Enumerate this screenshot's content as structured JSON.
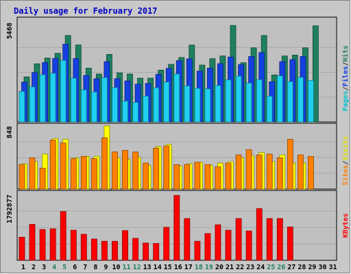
{
  "chart_data": {
    "type": "bar",
    "title": "Daily usage for February 2017",
    "categories": [
      "1",
      "2",
      "3",
      "4",
      "5",
      "6",
      "7",
      "8",
      "9",
      "10",
      "11",
      "12",
      "13",
      "14",
      "15",
      "16",
      "17",
      "18",
      "19",
      "20",
      "21",
      "22",
      "23",
      "24",
      "25",
      "26",
      "27",
      "28",
      "29",
      "30",
      "31"
    ],
    "weekend_days": [
      4,
      5,
      11,
      12,
      18,
      19,
      25,
      26
    ],
    "panels": [
      {
        "key": "pages_files_hits",
        "max_label": "5468",
        "ymax": 5468,
        "axis_labels": [
          {
            "text": "Pages",
            "color": "#00c0d0"
          },
          {
            "text": "/",
            "color": "#333333"
          },
          {
            "text": "Files",
            "color": "#1040e0"
          },
          {
            "text": "/",
            "color": "#333333"
          },
          {
            "text": "Hits",
            "color": "#208060"
          }
        ],
        "series": [
          {
            "name": "Hits",
            "color": "#1e8060",
            "values": [
              2480,
              3200,
              3520,
              3780,
              4760,
              4240,
              2960,
              2640,
              3720,
              2700,
              2640,
              2410,
              2410,
              2850,
              3170,
              3550,
              4230,
              3130,
              3480,
              3630,
              5310,
              3260,
              4080,
              4760,
              2590,
              3630,
              3680,
              4080,
              5290,
              0,
              0
            ]
          },
          {
            "name": "Files",
            "color": "#1540e0",
            "values": [
              2190,
              2720,
              3270,
              3500,
              4280,
              3490,
              2560,
              2380,
              3320,
              2380,
              2260,
              2080,
              2120,
              2620,
              2950,
              3380,
              3470,
              2800,
              2960,
              3210,
              3570,
              3160,
              3600,
              3820,
              2210,
              3320,
              3430,
              3600,
              0,
              0,
              0
            ]
          },
          {
            "name": "Pages",
            "color": "#20d0f0",
            "values": [
              1680,
              1930,
              2600,
              2680,
              3390,
              2410,
              1770,
              1650,
              2440,
              1890,
              1150,
              1080,
              1420,
              1880,
              2200,
              2640,
              1980,
              1850,
              1820,
              2010,
              2320,
              2520,
              2140,
              2330,
              1420,
              2540,
              2220,
              2460,
              2280,
              0,
              0
            ]
          }
        ]
      },
      {
        "key": "visits_sites",
        "max_label": "848",
        "ymax": 848,
        "axis_labels": [
          {
            "text": "Sites",
            "color": "#ff8000"
          },
          {
            "text": "/",
            "color": "#333333"
          },
          {
            "text": "Visits",
            "color": "#e0e000"
          }
        ],
        "series": [
          {
            "name": "Visits",
            "color": "#ffff00",
            "values": [
              340,
              370,
              470,
              680,
              670,
              420,
              440,
              440,
              850,
              420,
              400,
              430,
              320,
              570,
              600,
              310,
              340,
              360,
              320,
              350,
              370,
              420,
              450,
              490,
              370,
              460,
              350,
              350,
              0,
              0,
              0
            ]
          },
          {
            "name": "Sites",
            "color": "#ff8000",
            "values": [
              330,
              420,
              280,
              660,
              620,
              410,
              440,
              410,
              690,
              500,
              520,
              500,
              350,
              550,
              580,
              330,
              330,
              360,
              330,
              300,
              350,
              460,
              530,
              460,
              470,
              420,
              670,
              460,
              440,
              0,
              0
            ]
          }
        ]
      },
      {
        "key": "kbytes",
        "max_label": "1792877",
        "ymax": 1792877,
        "axis_labels": [
          {
            "text": "KBytes",
            "color": "#ff0000"
          }
        ],
        "series": [
          {
            "name": "KBytes",
            "color": "#ff0000",
            "values": [
              630000,
              980000,
              840000,
              860000,
              1330000,
              820000,
              710000,
              580000,
              520000,
              520000,
              810000,
              600000,
              470000,
              460000,
              900000,
              1770000,
              1140000,
              520000,
              730000,
              970000,
              820000,
              1140000,
              800000,
              1410000,
              1140000,
              1140000,
              910000,
              0,
              0,
              0,
              0
            ]
          }
        ]
      }
    ]
  }
}
